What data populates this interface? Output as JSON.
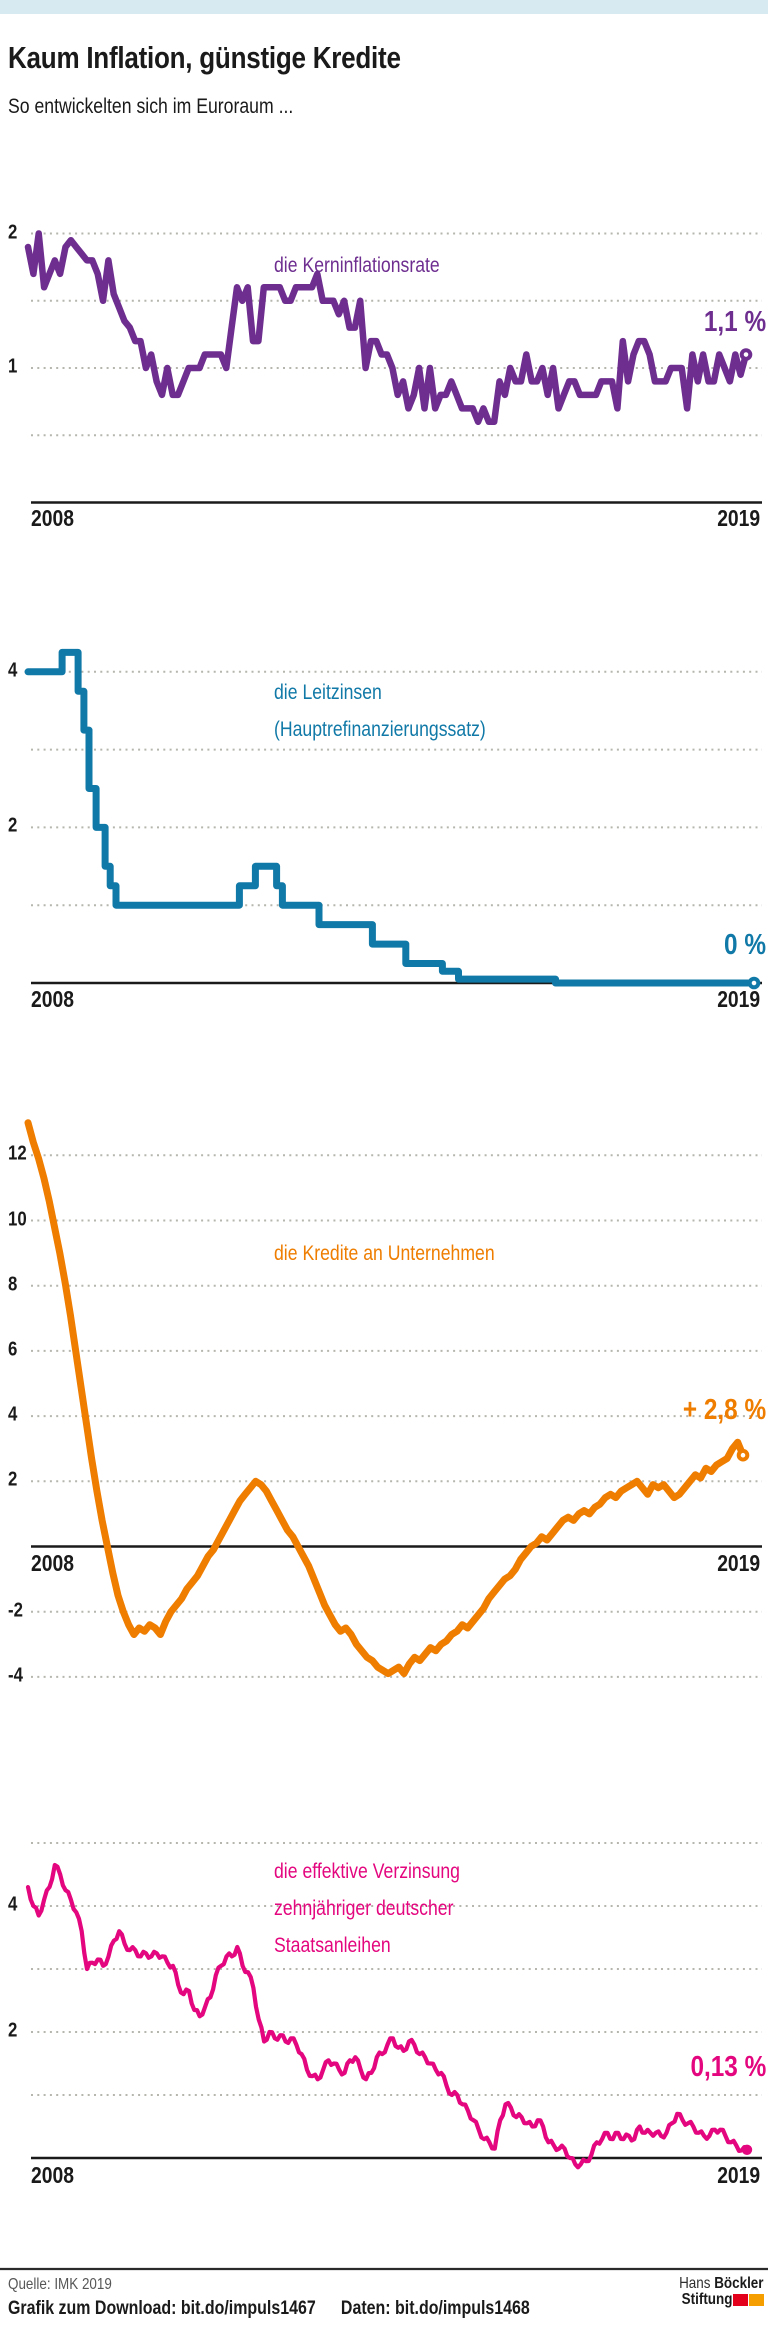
{
  "header": {
    "title": "Kaum Inflation, günstige Kredite",
    "subtitle": "So entwickelten sich im Euroraum ...",
    "accent_bar_color": "#d7e9f1"
  },
  "chart_data": [
    {
      "type": "line",
      "id": "kerninflationsrate",
      "label_lines": [
        "die Kerninflationsrate"
      ],
      "value_label": "1,1 %",
      "color": "#6e2e90",
      "x_start_label": "2008",
      "x_end_label": "2019",
      "xlim": [
        2008,
        2019.17
      ],
      "ylim": [
        0,
        2.2
      ],
      "grid": [
        2,
        1.5,
        1,
        0.5
      ],
      "y_ticks": [
        {
          "v": 2,
          "label": "2"
        },
        {
          "v": 1,
          "label": "1"
        }
      ],
      "marker": "ring",
      "series": {
        "start_year": 2008,
        "freq": "monthly",
        "values": [
          1.9,
          1.7,
          2.0,
          1.6,
          1.7,
          1.8,
          1.7,
          1.9,
          1.95,
          1.9,
          1.85,
          1.8,
          1.8,
          1.7,
          1.5,
          1.8,
          1.55,
          1.45,
          1.35,
          1.3,
          1.2,
          1.2,
          1.0,
          1.1,
          0.9,
          0.8,
          1.0,
          0.8,
          0.8,
          0.9,
          1.0,
          1.0,
          1.0,
          1.1,
          1.1,
          1.1,
          1.1,
          1.0,
          1.3,
          1.6,
          1.5,
          1.6,
          1.2,
          1.2,
          1.6,
          1.6,
          1.6,
          1.6,
          1.5,
          1.5,
          1.6,
          1.6,
          1.6,
          1.6,
          1.7,
          1.5,
          1.5,
          1.5,
          1.4,
          1.5,
          1.3,
          1.3,
          1.5,
          1.0,
          1.2,
          1.2,
          1.1,
          1.1,
          1.0,
          0.8,
          0.9,
          0.7,
          0.8,
          1.0,
          0.7,
          1.0,
          0.7,
          0.8,
          0.8,
          0.9,
          0.8,
          0.7,
          0.7,
          0.7,
          0.6,
          0.7,
          0.6,
          0.6,
          0.9,
          0.8,
          1.0,
          0.9,
          0.9,
          1.1,
          0.9,
          0.9,
          1.0,
          0.8,
          1.0,
          0.7,
          0.8,
          0.9,
          0.9,
          0.8,
          0.8,
          0.8,
          0.8,
          0.9,
          0.9,
          0.9,
          0.7,
          1.2,
          0.9,
          1.1,
          1.2,
          1.2,
          1.1,
          0.9,
          0.9,
          0.9,
          1.0,
          1.0,
          1.0,
          0.7,
          1.1,
          0.9,
          1.1,
          0.9,
          0.9,
          1.1,
          1.0,
          0.9,
          1.1,
          0.95,
          1.1
        ]
      }
    },
    {
      "type": "step-line",
      "id": "leitzinsen",
      "label_lines": [
        "die Leitzinsen",
        "(Hauptrefinanzierungssatz)"
      ],
      "value_label": "0 %",
      "color": "#1179a7",
      "x_start_label": "2008",
      "x_end_label": "2019",
      "xlim": [
        2008,
        2019.3
      ],
      "ylim": [
        0,
        4.4
      ],
      "grid": [
        4,
        3,
        2,
        1
      ],
      "y_ticks": [
        {
          "v": 4,
          "label": "4"
        },
        {
          "v": 2,
          "label": "2"
        }
      ],
      "marker": "ring",
      "steps": [
        [
          2008.0,
          4.0
        ],
        [
          2008.53,
          4.25
        ],
        [
          2008.78,
          3.75
        ],
        [
          2008.87,
          3.25
        ],
        [
          2008.95,
          2.5
        ],
        [
          2009.06,
          2.0
        ],
        [
          2009.2,
          1.5
        ],
        [
          2009.28,
          1.25
        ],
        [
          2009.37,
          1.0
        ],
        [
          2011.29,
          1.25
        ],
        [
          2011.54,
          1.5
        ],
        [
          2011.87,
          1.25
        ],
        [
          2011.96,
          1.0
        ],
        [
          2012.53,
          0.75
        ],
        [
          2013.36,
          0.5
        ],
        [
          2013.88,
          0.25
        ],
        [
          2014.45,
          0.15
        ],
        [
          2014.7,
          0.05
        ],
        [
          2016.21,
          0.0
        ],
        [
          2019.3,
          0.0
        ]
      ]
    },
    {
      "type": "line",
      "id": "kredite-an-unternehmen",
      "label_lines": [
        "die Kredite an Unternehmen"
      ],
      "value_label": "+ 2,8 %",
      "color": "#ee7d00",
      "x_start_label": "2008",
      "x_end_label": "2019",
      "xlim": [
        2008,
        2019.25
      ],
      "ylim": [
        -4.5,
        13.2
      ],
      "grid": [
        12,
        10,
        8,
        6,
        4,
        2,
        -2,
        -4
      ],
      "y_ticks": [
        {
          "v": 12,
          "label": "12"
        },
        {
          "v": 10,
          "label": "10"
        },
        {
          "v": 8,
          "label": "8"
        },
        {
          "v": 6,
          "label": "6"
        },
        {
          "v": 4,
          "label": "4"
        },
        {
          "v": 2,
          "label": "2"
        },
        {
          "v": -2,
          "label": "-2"
        },
        {
          "v": -4,
          "label": "-4"
        }
      ],
      "marker": "ring",
      "series": {
        "start_year": 2008,
        "freq": "monthly",
        "values": [
          13.0,
          12.4,
          11.9,
          11.3,
          10.6,
          9.8,
          9.0,
          8.1,
          7.1,
          6.0,
          4.9,
          3.8,
          2.7,
          1.7,
          0.8,
          0.0,
          -0.8,
          -1.5,
          -2.0,
          -2.4,
          -2.7,
          -2.5,
          -2.6,
          -2.4,
          -2.5,
          -2.7,
          -2.3,
          -2.0,
          -1.8,
          -1.6,
          -1.3,
          -1.1,
          -0.9,
          -0.6,
          -0.3,
          -0.1,
          0.2,
          0.5,
          0.8,
          1.1,
          1.4,
          1.6,
          1.8,
          2.0,
          1.9,
          1.7,
          1.4,
          1.1,
          0.8,
          0.5,
          0.3,
          0.0,
          -0.3,
          -0.6,
          -1.0,
          -1.4,
          -1.8,
          -2.1,
          -2.4,
          -2.6,
          -2.5,
          -2.7,
          -3.0,
          -3.2,
          -3.4,
          -3.5,
          -3.7,
          -3.8,
          -3.9,
          -3.8,
          -3.7,
          -3.9,
          -3.6,
          -3.4,
          -3.5,
          -3.3,
          -3.1,
          -3.2,
          -3.0,
          -2.9,
          -2.7,
          -2.6,
          -2.4,
          -2.5,
          -2.3,
          -2.1,
          -1.9,
          -1.6,
          -1.4,
          -1.2,
          -1.0,
          -0.9,
          -0.7,
          -0.4,
          -0.2,
          0.0,
          0.1,
          0.3,
          0.2,
          0.4,
          0.6,
          0.8,
          0.9,
          0.8,
          1.0,
          1.1,
          1.0,
          1.2,
          1.3,
          1.5,
          1.6,
          1.5,
          1.7,
          1.8,
          1.9,
          2.0,
          1.8,
          1.6,
          1.9,
          1.8,
          1.9,
          1.7,
          1.5,
          1.6,
          1.8,
          2.0,
          2.2,
          2.1,
          2.4,
          2.3,
          2.5,
          2.6,
          2.7,
          3.0,
          3.2,
          2.8
        ]
      }
    },
    {
      "type": "line",
      "id": "bund-rendite",
      "label_lines": [
        "die effektive Verzinsung",
        "zehnjähriger deutscher",
        "Staatsanleihen"
      ],
      "value_label": "0,13 %",
      "color": "#e3067e",
      "x_start_label": "2008",
      "x_end_label": "2019",
      "xlim": [
        2008,
        2019.17
      ],
      "ylim": [
        -0.3,
        5.0
      ],
      "grid": [
        5,
        4,
        3,
        2,
        1
      ],
      "y_ticks": [
        {
          "v": 4,
          "label": "4"
        },
        {
          "v": 2,
          "label": "2"
        }
      ],
      "marker": "dot",
      "series": {
        "start_year": 2008,
        "freq": "monthly",
        "values": [
          4.3,
          4.0,
          3.85,
          4.1,
          4.3,
          4.65,
          4.5,
          4.25,
          4.1,
          3.9,
          3.6,
          3.0,
          3.1,
          3.15,
          3.05,
          3.2,
          3.45,
          3.6,
          3.4,
          3.3,
          3.3,
          3.2,
          3.25,
          3.2,
          3.25,
          3.2,
          3.1,
          3.05,
          2.75,
          2.6,
          2.65,
          2.35,
          2.25,
          2.4,
          2.55,
          2.9,
          3.05,
          3.2,
          3.2,
          3.35,
          3.05,
          2.95,
          2.7,
          2.2,
          1.85,
          2.0,
          1.9,
          1.95,
          1.85,
          1.9,
          1.8,
          1.65,
          1.4,
          1.3,
          1.25,
          1.4,
          1.55,
          1.5,
          1.4,
          1.35,
          1.55,
          1.6,
          1.4,
          1.25,
          1.35,
          1.6,
          1.65,
          1.8,
          1.9,
          1.75,
          1.7,
          1.85,
          1.8,
          1.65,
          1.6,
          1.5,
          1.4,
          1.35,
          1.15,
          1.0,
          1.0,
          0.85,
          0.75,
          0.6,
          0.45,
          0.3,
          0.25,
          0.15,
          0.6,
          0.85,
          0.8,
          0.65,
          0.65,
          0.55,
          0.5,
          0.6,
          0.5,
          0.25,
          0.2,
          0.15,
          0.15,
          0.0,
          -0.1,
          -0.1,
          -0.05,
          0.05,
          0.25,
          0.3,
          0.4,
          0.3,
          0.4,
          0.3,
          0.35,
          0.3,
          0.5,
          0.4,
          0.4,
          0.4,
          0.35,
          0.4,
          0.55,
          0.7,
          0.6,
          0.55,
          0.5,
          0.4,
          0.35,
          0.35,
          0.45,
          0.45,
          0.35,
          0.25,
          0.2,
          0.12,
          0.13
        ]
      }
    }
  ],
  "style": {
    "grid_color": "#b6b6ae",
    "axis_color": "#1a1a1a"
  },
  "footer": {
    "source": "Quelle: IMK 2019",
    "download": "Grafik zum Download: bit.do/impuls1467",
    "data_link": "Daten: bit.do/impuls1468",
    "logo": {
      "word1": "Hans",
      "word2": "Böckler",
      "word3": "Stiftung",
      "red": "#e2001a",
      "orange": "#f59e00"
    }
  }
}
